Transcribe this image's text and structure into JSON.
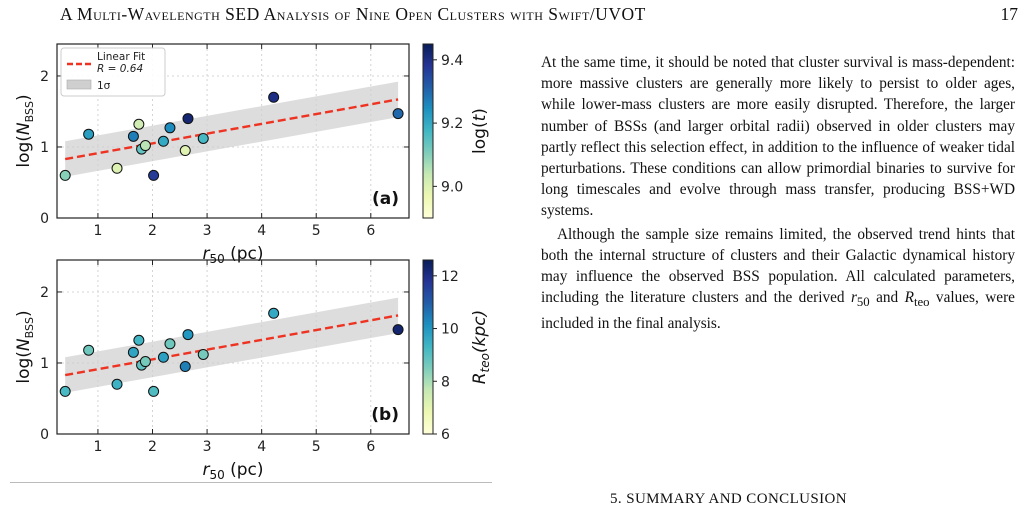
{
  "header": {
    "title": "A Multi-Wavelength SED Analysis of Nine Open Clusters with Swift/UVOT",
    "page_number": "17"
  },
  "body_text": {
    "paragraph_1": "At the same time, it should be noted that cluster survival is mass-dependent: more massive clusters are generally more likely to persist to older ages, while lower-mass clusters are more easily disrupted. Therefore, the larger number of BSSs (and larger orbital radii) observed in older clusters may partly reflect this selection effect, in addition to the influence of weaker tidal perturbations. These conditions can allow primordial binaries to survive for long timescales and evolve through mass transfer, producing BSS+WD systems.",
    "paragraph_2_part_1": "Although the sample size remains limited, the observed trend hints that both the internal structure of clusters and their Galactic dynamical history may influence the observed BSS population. All calculated parameters, including the literature clusters and the derived ",
    "paragraph_2_r50": "r",
    "paragraph_2_r50_sub": "50",
    "paragraph_2_and": " and ",
    "paragraph_2_rteo": "R",
    "paragraph_2_rteo_sub": "teo",
    "paragraph_2_part_2": " values, were included in the final analysis."
  },
  "section_heading": "5. SUMMARY AND CONCLUSION",
  "chart_data": [
    {
      "panel": "(a)",
      "type": "scatter",
      "xlabel": "r50 (pc)",
      "xlabel_main": "r",
      "xlabel_sub": "50",
      "xlabel_unit": " (pc)",
      "ylabel": "log(NBSS)",
      "ylabel_pre": "log(",
      "ylabel_main": "N",
      "ylabel_sub": "BSS",
      "ylabel_post": ")",
      "colorbar_label": "log(t)",
      "colorbar_range": [
        8.9,
        9.45
      ],
      "colorbar_ticks": [
        "9.0",
        "9.2",
        "9.4"
      ],
      "colormap": "YlGnBu",
      "xlim": [
        0.25,
        6.7
      ],
      "ylim": [
        0,
        2.45
      ],
      "xticks": [
        "1",
        "2",
        "3",
        "4",
        "5",
        "6"
      ],
      "yticks": [
        "0",
        "1",
        "2"
      ],
      "grid": true,
      "legend_position": "top-left",
      "legend": {
        "fit_label": "Linear Fit",
        "r_label": "R = 0.64",
        "band_label": "1σ"
      },
      "fit": {
        "color": "#ee3322",
        "x0": 0.4,
        "y0": 0.83,
        "x1": 6.5,
        "y1": 1.67,
        "band": 0.25
      },
      "points": [
        {
          "x": 0.4,
          "y": 0.6,
          "c": 9.1
        },
        {
          "x": 0.83,
          "y": 1.18,
          "c": 9.22
        },
        {
          "x": 1.35,
          "y": 0.7,
          "c": 9.0
        },
        {
          "x": 1.65,
          "y": 1.15,
          "c": 9.27
        },
        {
          "x": 1.75,
          "y": 1.32,
          "c": 9.02
        },
        {
          "x": 1.8,
          "y": 0.97,
          "c": 9.14
        },
        {
          "x": 1.87,
          "y": 1.02,
          "c": 9.05
        },
        {
          "x": 2.02,
          "y": 0.6,
          "c": 9.37
        },
        {
          "x": 2.2,
          "y": 1.08,
          "c": 9.2
        },
        {
          "x": 2.32,
          "y": 1.27,
          "c": 9.25
        },
        {
          "x": 2.6,
          "y": 0.95,
          "c": 8.99
        },
        {
          "x": 2.65,
          "y": 1.4,
          "c": 9.42
        },
        {
          "x": 2.93,
          "y": 1.12,
          "c": 9.17
        },
        {
          "x": 4.22,
          "y": 1.7,
          "c": 9.4
        },
        {
          "x": 6.5,
          "y": 1.47,
          "c": 9.3
        }
      ]
    },
    {
      "panel": "(b)",
      "type": "scatter",
      "xlabel": "r50 (pc)",
      "xlabel_main": "r",
      "xlabel_sub": "50",
      "xlabel_unit": " (pc)",
      "ylabel": "log(NBSS)",
      "ylabel_pre": "log(",
      "ylabel_main": "N",
      "ylabel_sub": "BSS",
      "ylabel_post": ")",
      "colorbar_label": "Rteo(kpc)",
      "colorbar_range": [
        6,
        12.6
      ],
      "colorbar_ticks": [
        "6",
        "8",
        "10",
        "12"
      ],
      "colormap": "YlGnBu",
      "xlim": [
        0.25,
        6.7
      ],
      "ylim": [
        0,
        2.45
      ],
      "xticks": [
        "1",
        "2",
        "3",
        "4",
        "5",
        "6"
      ],
      "yticks": [
        "0",
        "1",
        "2"
      ],
      "grid": true,
      "fit": {
        "color": "#ee3322",
        "x0": 0.4,
        "y0": 0.83,
        "x1": 6.5,
        "y1": 1.67,
        "band": 0.25
      },
      "points": [
        {
          "x": 0.4,
          "y": 0.6,
          "c": 9.2
        },
        {
          "x": 0.83,
          "y": 1.18,
          "c": 8.7
        },
        {
          "x": 1.35,
          "y": 0.7,
          "c": 9.4
        },
        {
          "x": 1.65,
          "y": 1.15,
          "c": 9.7
        },
        {
          "x": 1.75,
          "y": 1.32,
          "c": 9.3
        },
        {
          "x": 1.8,
          "y": 0.97,
          "c": 8.9
        },
        {
          "x": 1.87,
          "y": 1.02,
          "c": 8.6
        },
        {
          "x": 2.02,
          "y": 0.6,
          "c": 9.1
        },
        {
          "x": 2.2,
          "y": 1.08,
          "c": 9.8
        },
        {
          "x": 2.32,
          "y": 1.27,
          "c": 8.7
        },
        {
          "x": 2.6,
          "y": 0.95,
          "c": 10.4
        },
        {
          "x": 2.65,
          "y": 1.4,
          "c": 10.0
        },
        {
          "x": 2.93,
          "y": 1.12,
          "c": 8.6
        },
        {
          "x": 4.22,
          "y": 1.7,
          "c": 9.6
        },
        {
          "x": 6.5,
          "y": 1.47,
          "c": 12.3
        }
      ]
    }
  ]
}
